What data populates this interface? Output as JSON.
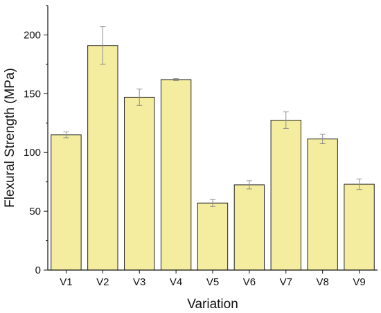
{
  "chart_data": {
    "type": "bar",
    "xlabel": "Variation",
    "ylabel": "Flexural Strength (MPa)",
    "categories": [
      "V1",
      "V2",
      "V3",
      "V4",
      "V5",
      "V6",
      "V7",
      "V8",
      "V9"
    ],
    "values": [
      115,
      191,
      147,
      162,
      57,
      72.5,
      127.5,
      111.5,
      73
    ],
    "errors": [
      2.5,
      16,
      7,
      0.8,
      3,
      3.5,
      7,
      4,
      4.5
    ],
    "ylim": [
      0,
      225
    ],
    "yticks": [
      0,
      50,
      100,
      150,
      200
    ],
    "grid": false,
    "legend": "none",
    "bar_color": "#f4ec9e",
    "bar_edge_color": "#222222",
    "error_color": "#8c8c8c"
  }
}
